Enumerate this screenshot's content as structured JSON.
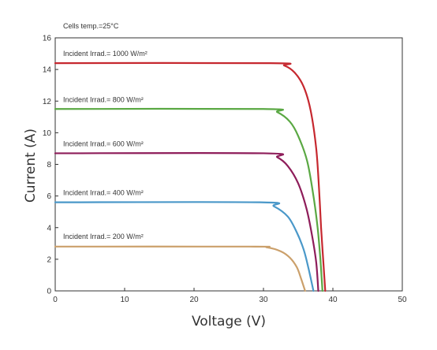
{
  "chart_data": {
    "type": "line",
    "annotation": "Cells temp.=25°C",
    "xlabel": "Voltage (V)",
    "ylabel": "Current (A)",
    "xlim": [
      0,
      50
    ],
    "ylim": [
      0,
      16
    ],
    "xticks": [
      0,
      10,
      20,
      30,
      40,
      50
    ],
    "yticks": [
      0,
      2,
      4,
      6,
      8,
      10,
      12,
      14,
      16
    ],
    "grid": false,
    "series": [
      {
        "label": "Incident Irrad.= 1000 W/m²",
        "color": "#c6282f",
        "points": [
          [
            0,
            14.4
          ],
          [
            31,
            14.4
          ],
          [
            33,
            14.25
          ],
          [
            34.5,
            13.8
          ],
          [
            35.8,
            12.9
          ],
          [
            36.8,
            11.4
          ],
          [
            37.6,
            9.0
          ],
          [
            38.0,
            6.5
          ],
          [
            38.3,
            4.0
          ],
          [
            38.6,
            2.0
          ],
          [
            38.9,
            0
          ]
        ]
      },
      {
        "label": "Incident Irrad.= 800 W/m²",
        "color": "#5aa843",
        "points": [
          [
            0,
            11.5
          ],
          [
            30,
            11.5
          ],
          [
            32,
            11.3
          ],
          [
            33.8,
            10.7
          ],
          [
            35,
            9.8
          ],
          [
            36.3,
            8.2
          ],
          [
            37.2,
            6.0
          ],
          [
            37.8,
            4.0
          ],
          [
            38.2,
            2.0
          ],
          [
            38.5,
            0
          ]
        ]
      },
      {
        "label": "Incident Irrad.= 600 W/m²",
        "color": "#8e1d5a",
        "points": [
          [
            0,
            8.7
          ],
          [
            30,
            8.7
          ],
          [
            32,
            8.45
          ],
          [
            33.5,
            7.9
          ],
          [
            35,
            6.8
          ],
          [
            36.2,
            5.2
          ],
          [
            37,
            3.5
          ],
          [
            37.6,
            1.8
          ],
          [
            37.9,
            0
          ]
        ]
      },
      {
        "label": "Incident Irrad.= 400 W/m²",
        "color": "#4a98c9",
        "points": [
          [
            0,
            5.6
          ],
          [
            29.5,
            5.6
          ],
          [
            31.5,
            5.35
          ],
          [
            33.5,
            4.7
          ],
          [
            34.8,
            3.7
          ],
          [
            35.8,
            2.6
          ],
          [
            36.5,
            1.4
          ],
          [
            37.2,
            0
          ]
        ]
      },
      {
        "label": "Incident Irrad.= 200 W/m²",
        "color": "#cba06b",
        "points": [
          [
            0,
            2.8
          ],
          [
            28,
            2.8
          ],
          [
            30.5,
            2.75
          ],
          [
            32.5,
            2.5
          ],
          [
            33.8,
            2.1
          ],
          [
            34.8,
            1.5
          ],
          [
            35.4,
            0.8
          ],
          [
            36,
            0
          ]
        ]
      }
    ],
    "label_positions": [
      14.6,
      11.7,
      8.9,
      5.8,
      3.05
    ]
  }
}
